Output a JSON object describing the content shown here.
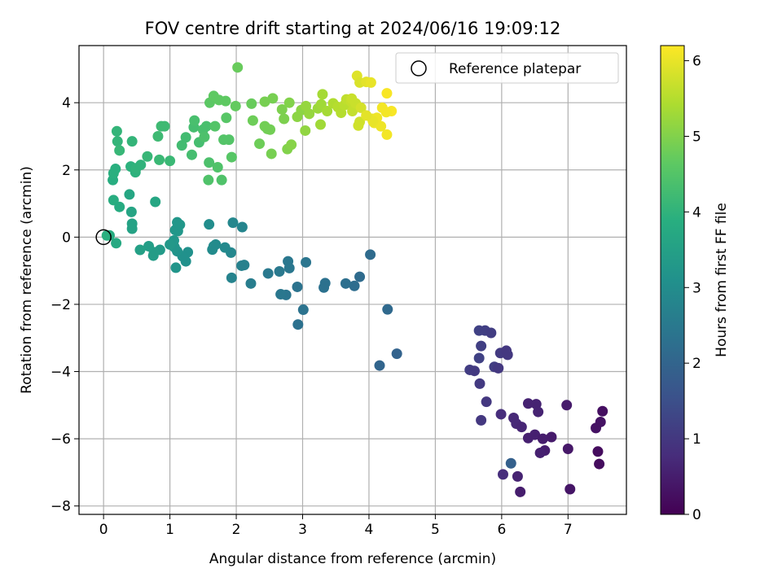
{
  "chart_data": {
    "type": "scatter",
    "title": "FOV centre drift starting at 2024/06/16 19:09:12",
    "xlabel": "Angular distance from reference (arcmin)",
    "ylabel": "Rotation from reference (arcmin)",
    "xlim": [
      -0.37,
      7.88
    ],
    "ylim": [
      -8.25,
      5.7
    ],
    "xticks": [
      0,
      1,
      2,
      3,
      4,
      5,
      6,
      7
    ],
    "yticks": [
      -8,
      -6,
      -4,
      -2,
      0,
      2,
      4
    ],
    "grid": true,
    "legend": {
      "position": "top-right",
      "entries": [
        {
          "label": "Reference platepar",
          "marker": "open-circle"
        }
      ]
    },
    "colorbar": {
      "label": "Hours from first FF file",
      "range": [
        0,
        6.2
      ],
      "ticks": [
        0,
        1,
        2,
        3,
        4,
        5,
        6
      ],
      "colormap": "viridis"
    },
    "reference_point": {
      "x": 0,
      "y": 0
    },
    "points": [
      [
        5.66,
        -2.78,
        1.2
      ],
      [
        5.75,
        -2.78,
        1.15
      ],
      [
        5.84,
        -2.85,
        1.1
      ],
      [
        5.69,
        -3.24,
        1.15
      ],
      [
        5.66,
        -3.6,
        1.2
      ],
      [
        5.52,
        -3.95,
        1.1
      ],
      [
        5.59,
        -3.98,
        1.05
      ],
      [
        5.89,
        -3.86,
        1.1
      ],
      [
        5.95,
        -3.9,
        1.0
      ],
      [
        5.98,
        -3.45,
        1.05
      ],
      [
        6.07,
        -3.38,
        1.0
      ],
      [
        6.09,
        -3.5,
        1.0
      ],
      [
        5.67,
        -4.36,
        1.05
      ],
      [
        5.77,
        -4.9,
        1.0
      ],
      [
        5.69,
        -5.45,
        1.0
      ],
      [
        5.99,
        -5.27,
        0.8
      ],
      [
        6.18,
        -5.38,
        0.7
      ],
      [
        6.22,
        -5.55,
        0.7
      ],
      [
        6.3,
        -5.65,
        0.65
      ],
      [
        6.4,
        -4.95,
        0.6
      ],
      [
        6.52,
        -4.97,
        0.6
      ],
      [
        6.55,
        -5.2,
        0.6
      ],
      [
        6.4,
        -5.98,
        0.55
      ],
      [
        6.5,
        -5.88,
        0.55
      ],
      [
        6.62,
        -6.0,
        0.5
      ],
      [
        6.65,
        -6.35,
        0.5
      ],
      [
        6.75,
        -5.95,
        0.45
      ],
      [
        6.58,
        -6.42,
        0.55
      ],
      [
        6.98,
        -5.0,
        0.45
      ],
      [
        7.0,
        -6.3,
        0.4
      ],
      [
        7.03,
        -7.5,
        0.35
      ],
      [
        7.42,
        -5.68,
        0.3
      ],
      [
        7.49,
        -5.5,
        0.3
      ],
      [
        7.52,
        -5.18,
        0.25
      ],
      [
        7.45,
        -6.38,
        0.2
      ],
      [
        7.47,
        -6.75,
        0.2
      ],
      [
        6.02,
        -7.06,
        0.8
      ],
      [
        6.14,
        -6.73,
        1.9
      ],
      [
        6.24,
        -7.12,
        0.6
      ],
      [
        6.28,
        -7.58,
        0.5
      ],
      [
        4.02,
        -0.52,
        2.15
      ],
      [
        4.28,
        -2.15,
        2.1
      ],
      [
        4.16,
        -3.82,
        2.0
      ],
      [
        4.42,
        -3.47,
        1.95
      ],
      [
        3.86,
        -1.18,
        2.15
      ],
      [
        3.78,
        -1.45,
        2.2
      ],
      [
        3.65,
        -1.38,
        2.25
      ],
      [
        3.34,
        -1.37,
        2.3
      ],
      [
        3.32,
        -1.5,
        2.3
      ],
      [
        3.05,
        -0.75,
        2.4
      ],
      [
        3.01,
        -2.16,
        2.35
      ],
      [
        2.93,
        -2.6,
        2.3
      ],
      [
        2.92,
        -1.48,
        2.35
      ],
      [
        2.78,
        -0.72,
        2.45
      ],
      [
        2.8,
        -0.92,
        2.45
      ],
      [
        2.75,
        -1.72,
        2.4
      ],
      [
        2.65,
        -1.02,
        2.5
      ],
      [
        2.67,
        -1.7,
        2.45
      ],
      [
        2.48,
        -1.08,
        2.5
      ],
      [
        2.22,
        -1.38,
        2.6
      ],
      [
        2.08,
        -0.85,
        2.7
      ],
      [
        2.12,
        -0.83,
        2.7
      ],
      [
        1.93,
        -1.21,
        2.75
      ],
      [
        1.95,
        0.43,
        2.85
      ],
      [
        2.09,
        0.3,
        2.8
      ],
      [
        1.92,
        -0.46,
        2.85
      ],
      [
        1.83,
        -0.31,
        2.9
      ],
      [
        1.69,
        -0.22,
        2.95
      ],
      [
        1.64,
        -0.37,
        2.95
      ],
      [
        1.66,
        -0.27,
        2.95
      ],
      [
        1.59,
        0.38,
        3.0
      ],
      [
        1.27,
        -0.45,
        3.1
      ],
      [
        1.24,
        -0.72,
        3.1
      ],
      [
        1.19,
        -0.57,
        3.1
      ],
      [
        1.11,
        -0.42,
        3.15
      ],
      [
        1.07,
        -0.3,
        3.2
      ],
      [
        1.09,
        -0.91,
        3.2
      ],
      [
        1.06,
        -0.1,
        3.25
      ],
      [
        1.08,
        0.21,
        3.25
      ],
      [
        1.12,
        0.18,
        3.25
      ],
      [
        1.11,
        0.44,
        3.25
      ],
      [
        1.15,
        0.37,
        3.25
      ],
      [
        1.0,
        -0.22,
        3.3
      ],
      [
        0.85,
        -0.38,
        3.35
      ],
      [
        0.75,
        -0.55,
        3.4
      ],
      [
        0.76,
        -0.45,
        3.4
      ],
      [
        0.68,
        -0.27,
        3.45
      ],
      [
        0.55,
        -0.38,
        3.5
      ],
      [
        0.43,
        0.25,
        3.55
      ],
      [
        0.43,
        0.4,
        3.55
      ],
      [
        0.42,
        0.75,
        3.6
      ],
      [
        0.39,
        1.27,
        3.65
      ],
      [
        0.19,
        -0.18,
        3.75
      ],
      [
        0.09,
        0.05,
        3.8
      ],
      [
        0.78,
        1.05,
        3.65
      ],
      [
        0.15,
        1.1,
        3.85
      ],
      [
        0.24,
        0.9,
        3.8
      ],
      [
        0.14,
        1.7,
        3.85
      ],
      [
        0.15,
        1.9,
        3.9
      ],
      [
        0.18,
        2.03,
        3.9
      ],
      [
        0.41,
        2.1,
        3.95
      ],
      [
        0.48,
        1.93,
        3.95
      ],
      [
        0.49,
        2.05,
        4.0
      ],
      [
        0.56,
        2.15,
        4.0
      ],
      [
        0.43,
        2.85,
        4.05
      ],
      [
        0.2,
        3.15,
        4.05
      ],
      [
        0.21,
        2.85,
        4.05
      ],
      [
        0.24,
        2.58,
        4.1
      ],
      [
        0.66,
        2.4,
        4.1
      ],
      [
        0.84,
        2.3,
        4.15
      ],
      [
        1.0,
        2.27,
        4.15
      ],
      [
        0.82,
        3.0,
        4.2
      ],
      [
        0.87,
        3.3,
        4.2
      ],
      [
        0.92,
        3.3,
        4.2
      ],
      [
        1.18,
        2.73,
        4.25
      ],
      [
        1.24,
        2.97,
        4.25
      ],
      [
        1.33,
        2.45,
        4.3
      ],
      [
        1.36,
        3.27,
        4.3
      ],
      [
        1.44,
        2.82,
        4.3
      ],
      [
        1.37,
        3.47,
        4.35
      ],
      [
        1.5,
        3.2,
        4.35
      ],
      [
        1.55,
        3.3,
        4.35
      ],
      [
        1.52,
        2.98,
        4.4
      ],
      [
        1.59,
        2.22,
        4.4
      ],
      [
        1.58,
        1.7,
        4.45
      ],
      [
        1.72,
        2.08,
        4.45
      ],
      [
        1.78,
        1.7,
        4.45
      ],
      [
        1.81,
        2.9,
        4.5
      ],
      [
        1.89,
        2.9,
        4.5
      ],
      [
        1.68,
        3.3,
        4.5
      ],
      [
        1.85,
        3.55,
        4.55
      ],
      [
        1.93,
        2.38,
        4.55
      ],
      [
        1.6,
        4.0,
        4.6
      ],
      [
        1.66,
        4.2,
        4.65
      ],
      [
        1.74,
        4.08,
        4.65
      ],
      [
        1.84,
        4.05,
        4.65
      ],
      [
        1.99,
        3.9,
        4.7
      ],
      [
        2.02,
        5.05,
        4.75
      ],
      [
        2.23,
        3.97,
        4.75
      ],
      [
        2.25,
        3.47,
        4.8
      ],
      [
        2.35,
        2.78,
        4.8
      ],
      [
        2.43,
        3.3,
        4.85
      ],
      [
        2.47,
        3.22,
        4.85
      ],
      [
        2.51,
        3.2,
        4.85
      ],
      [
        2.53,
        2.48,
        4.9
      ],
      [
        2.55,
        4.13,
        4.9
      ],
      [
        2.43,
        4.03,
        4.9
      ],
      [
        2.69,
        3.8,
        4.95
      ],
      [
        2.72,
        3.52,
        4.95
      ],
      [
        2.8,
        4.0,
        5.0
      ],
      [
        2.77,
        2.62,
        5.0
      ],
      [
        2.83,
        2.75,
        5.05
      ],
      [
        2.92,
        3.58,
        5.1
      ],
      [
        2.98,
        3.78,
        5.1
      ],
      [
        3.04,
        3.17,
        5.15
      ],
      [
        3.05,
        3.9,
        5.2
      ],
      [
        3.1,
        3.67,
        5.2
      ],
      [
        3.23,
        3.83,
        5.25
      ],
      [
        3.27,
        3.35,
        5.3
      ],
      [
        3.28,
        3.95,
        5.3
      ],
      [
        3.3,
        4.25,
        5.35
      ],
      [
        3.37,
        3.75,
        5.35
      ],
      [
        3.46,
        3.98,
        5.45
      ],
      [
        3.53,
        3.87,
        5.5
      ],
      [
        3.58,
        3.7,
        5.5
      ],
      [
        3.63,
        3.93,
        5.55
      ],
      [
        3.66,
        4.1,
        5.6
      ],
      [
        3.73,
        4.03,
        5.65
      ],
      [
        3.75,
        3.75,
        5.65
      ],
      [
        3.8,
        3.98,
        5.7
      ],
      [
        3.84,
        3.32,
        5.75
      ],
      [
        3.86,
        3.43,
        5.75
      ],
      [
        3.88,
        3.85,
        5.8
      ],
      [
        3.82,
        4.8,
        5.9
      ],
      [
        3.86,
        4.6,
        5.85
      ],
      [
        3.96,
        4.62,
        5.95
      ],
      [
        4.03,
        4.6,
        6.0
      ],
      [
        4.05,
        3.52,
        6.0
      ],
      [
        4.08,
        3.4,
        6.05
      ],
      [
        4.12,
        3.55,
        6.05
      ],
      [
        4.18,
        3.3,
        6.05
      ],
      [
        4.2,
        3.85,
        6.1
      ],
      [
        4.27,
        3.05,
        6.1
      ],
      [
        4.27,
        4.28,
        6.15
      ],
      [
        4.34,
        3.75,
        6.15
      ],
      [
        3.74,
        4.12,
        5.7
      ],
      [
        4.06,
        3.45,
        6.0
      ],
      [
        3.96,
        3.62,
        5.95
      ],
      [
        0.05,
        0.05,
        3.9
      ],
      [
        4.26,
        3.72,
        6.1
      ]
    ]
  }
}
